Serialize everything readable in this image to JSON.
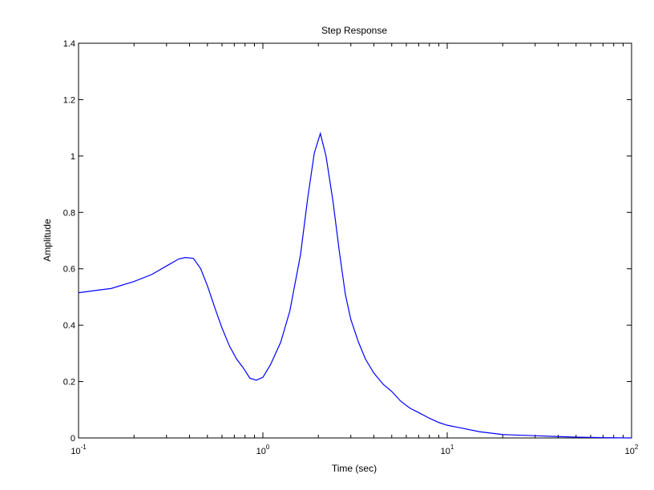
{
  "chart_data": {
    "type": "line",
    "title": "Step Response",
    "xlabel": "Time (sec)",
    "ylabel": "Amplitude",
    "xscale": "log",
    "xlim": [
      0.1,
      100
    ],
    "ylim": [
      0,
      1.4
    ],
    "grid": false,
    "x_ticks": [
      {
        "base": "10",
        "exp": "-1",
        "value": 0.1
      },
      {
        "base": "10",
        "exp": "0",
        "value": 1
      },
      {
        "base": "10",
        "exp": "1",
        "value": 10
      },
      {
        "base": "10",
        "exp": "2",
        "value": 100
      }
    ],
    "y_ticks": [
      {
        "label": "0",
        "value": 0
      },
      {
        "label": "0.2",
        "value": 0.2
      },
      {
        "label": "0.4",
        "value": 0.4
      },
      {
        "label": "0.6",
        "value": 0.6
      },
      {
        "label": "0.8",
        "value": 0.8
      },
      {
        "label": "1",
        "value": 1.0
      },
      {
        "label": "1.2",
        "value": 1.2
      },
      {
        "label": "1.4",
        "value": 1.4
      }
    ],
    "series": [
      {
        "color": "#0000ff",
        "x": [
          0.1,
          0.13,
          0.15,
          0.2,
          0.25,
          0.3,
          0.35,
          0.38,
          0.42,
          0.46,
          0.5,
          0.55,
          0.6,
          0.66,
          0.72,
          0.78,
          0.85,
          0.92,
          1.0,
          1.1,
          1.25,
          1.4,
          1.6,
          1.75,
          1.9,
          2.05,
          2.2,
          2.4,
          2.6,
          2.8,
          3.0,
          3.3,
          3.6,
          4.0,
          4.5,
          5.0,
          5.6,
          6.3,
          7.0,
          8.0,
          9.0,
          10,
          12,
          15,
          20,
          30,
          40,
          50,
          70,
          100
        ],
        "y": [
          0.515,
          0.525,
          0.53,
          0.555,
          0.58,
          0.61,
          0.635,
          0.64,
          0.637,
          0.6,
          0.54,
          0.46,
          0.39,
          0.325,
          0.28,
          0.25,
          0.212,
          0.205,
          0.215,
          0.26,
          0.34,
          0.45,
          0.65,
          0.85,
          1.01,
          1.08,
          1.0,
          0.84,
          0.66,
          0.51,
          0.42,
          0.34,
          0.28,
          0.23,
          0.19,
          0.165,
          0.13,
          0.105,
          0.09,
          0.07,
          0.055,
          0.045,
          0.035,
          0.022,
          0.012,
          0.008,
          0.005,
          0.003,
          0.001,
          0.0
        ]
      }
    ]
  }
}
